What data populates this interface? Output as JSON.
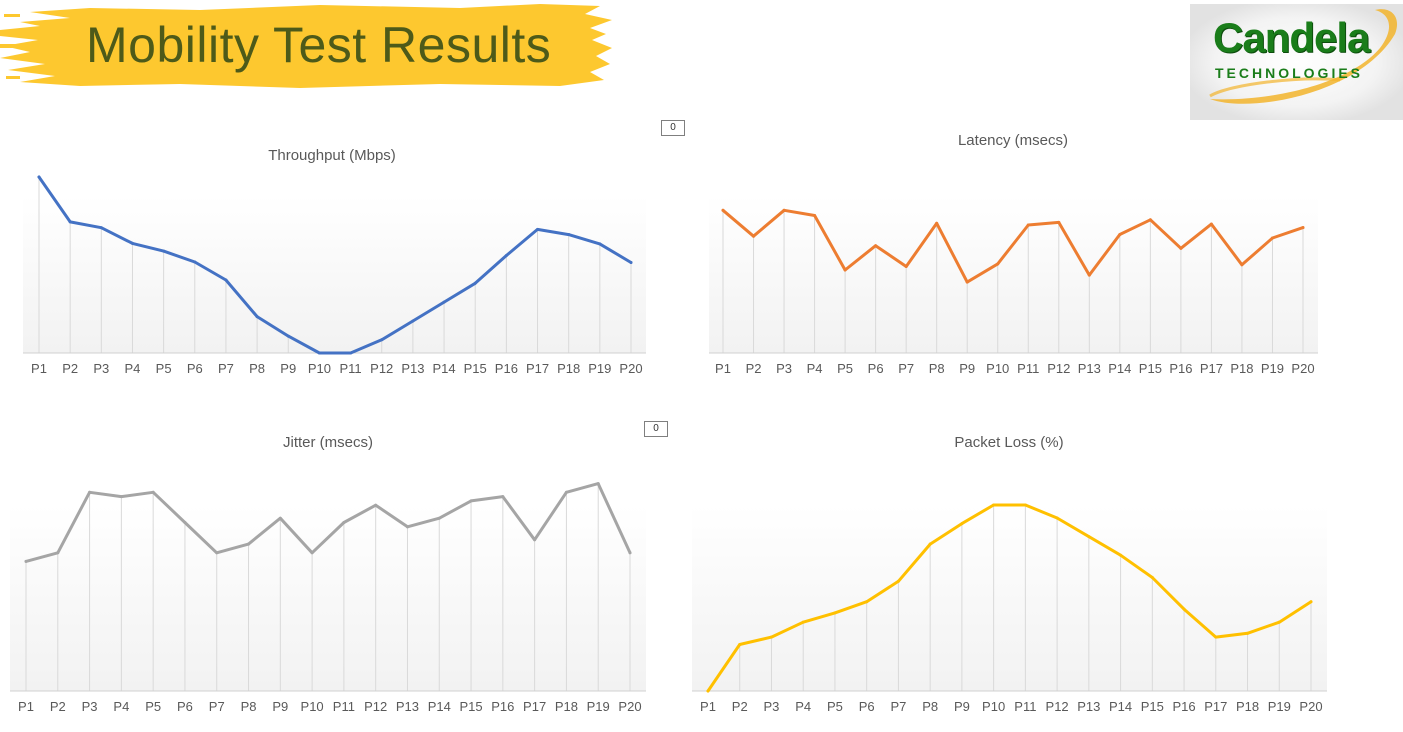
{
  "header": {
    "title": "Mobility Test Results",
    "logo_word": "Candela",
    "logo_sub": "TECHNOLOGIES"
  },
  "widgets": {
    "box1_value": "0",
    "box2_value": "0"
  },
  "colors": {
    "banner": "#fdc82f",
    "title_text": "#4d5a19",
    "throughput": "#4472c4",
    "latency": "#ed7d31",
    "jitter": "#a5a5a5",
    "packet_loss": "#ffc000"
  },
  "chart_data": [
    {
      "type": "line",
      "title": "Throughput (Mbps)",
      "categories": [
        "P1",
        "P2",
        "P3",
        "P4",
        "P5",
        "P6",
        "P7",
        "P8",
        "P9",
        "P10",
        "P11",
        "P12",
        "P13",
        "P14",
        "P15",
        "P16",
        "P17",
        "P18",
        "P19",
        "P20"
      ],
      "values": [
        100,
        74.5,
        71.2,
        62.3,
        57.9,
        51.7,
        41.5,
        20.7,
        9.6,
        0,
        0,
        7.5,
        18.2,
        28.9,
        39.6,
        55.4,
        70.2,
        67.3,
        62.0,
        51.4
      ],
      "ylim": [
        0,
        100
      ],
      "xlabel": "",
      "ylabel": "",
      "grid": "vertical drop lines"
    },
    {
      "type": "line",
      "title": "Latency (msecs)",
      "categories": [
        "P1",
        "P2",
        "P3",
        "P4",
        "P5",
        "P6",
        "P7",
        "P8",
        "P9",
        "P10",
        "P11",
        "P12",
        "P13",
        "P14",
        "P15",
        "P16",
        "P17",
        "P18",
        "P19",
        "P20"
      ],
      "values": [
        82.5,
        67.5,
        82.5,
        79.5,
        48.0,
        62.0,
        50.0,
        75.0,
        41.0,
        51.5,
        74.0,
        75.5,
        45.0,
        68.5,
        77.0,
        60.5,
        74.5,
        51.0,
        66.5,
        72.5
      ],
      "ylim": [
        0,
        100
      ],
      "xlabel": "",
      "ylabel": "",
      "grid": "vertical drop lines"
    },
    {
      "type": "line",
      "title": "Jitter (msecs)",
      "categories": [
        "P1",
        "P2",
        "P3",
        "P4",
        "P5",
        "P6",
        "P7",
        "P8",
        "P9",
        "P10",
        "P11",
        "P12",
        "P13",
        "P14",
        "P15",
        "P16",
        "P17",
        "P18",
        "P19",
        "P20"
      ],
      "values": [
        60,
        64,
        92,
        90,
        92,
        78,
        64,
        68,
        80,
        64,
        78,
        86,
        76,
        80,
        88,
        90,
        70,
        92,
        96,
        64
      ],
      "ylim": [
        0,
        100
      ],
      "xlabel": "",
      "ylabel": "",
      "grid": "vertical drop lines"
    },
    {
      "type": "line",
      "title": "Packet Loss (%)",
      "categories": [
        "P1",
        "P2",
        "P3",
        "P4",
        "P5",
        "P6",
        "P7",
        "P8",
        "P9",
        "P10",
        "P11",
        "P12",
        "P13",
        "P14",
        "P15",
        "P16",
        "P17",
        "P18",
        "P19",
        "P20"
      ],
      "values": [
        0,
        25,
        29,
        37,
        42,
        48,
        59,
        79,
        90,
        100,
        100,
        93,
        83,
        73,
        61,
        44,
        29,
        31,
        37,
        48
      ],
      "ylim": [
        0,
        100
      ],
      "xlabel": "",
      "ylabel": "",
      "grid": "vertical drop lines"
    }
  ]
}
